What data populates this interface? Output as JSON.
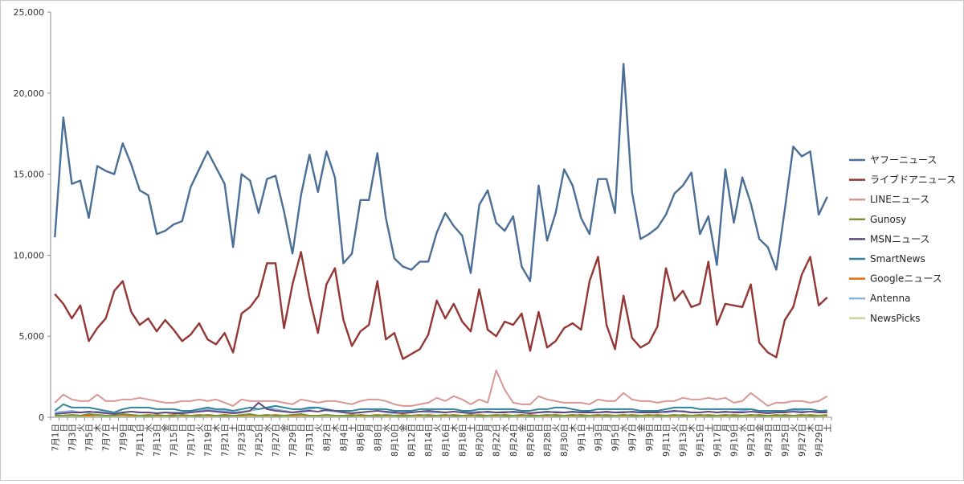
{
  "chart_data": {
    "type": "line",
    "title": "",
    "xlabel": "",
    "ylabel": "",
    "ylim": [
      0,
      25000
    ],
    "yticks": [
      "0",
      "5,000",
      "10,000",
      "15,000",
      "20,000",
      "25,000"
    ],
    "grid": false,
    "legend_position": "right",
    "x_tick_labels": [
      "7月1日",
      "日",
      "7月3日",
      "火",
      "7月5日",
      "木",
      "7月7日",
      "土",
      "7月9日",
      "月",
      "7月11日",
      "水",
      "7月13日",
      "金",
      "7月15日",
      "日",
      "7月17日",
      "火",
      "7月19日",
      "木",
      "7月21日",
      "土",
      "7月23日",
      "月",
      "7月25日",
      "水",
      "7月27日",
      "金",
      "7月29日",
      "日",
      "7月31日",
      "火",
      "8月2日",
      "木",
      "8月4日",
      "土",
      "8月6日",
      "月",
      "8月8日",
      "水",
      "8月10日",
      "金",
      "8月12日",
      "日",
      "8月14日",
      "火",
      "8月16日",
      "木",
      "8月18日",
      "土",
      "8月20日",
      "月",
      "8月22日",
      "水",
      "8月24日",
      "金",
      "8月26日",
      "日",
      "8月28日",
      "火",
      "8月30日",
      "木",
      "9月1日",
      "土",
      "9月3日",
      "月",
      "9月5日",
      "水",
      "9月7日",
      "金",
      "9月9日",
      "日",
      "9月11日",
      "火",
      "9月13日",
      "木",
      "9月15日",
      "土",
      "9月17日",
      "月",
      "9月19日",
      "水",
      "9月21日",
      "金",
      "9月23日",
      "日",
      "9月25日",
      "火",
      "9月27日",
      "木",
      "9月29日",
      "土"
    ],
    "series": [
      {
        "name": "ヤフーニュース",
        "color": "#4a6e96",
        "values": [
          11100,
          18500,
          14400,
          14600,
          12300,
          15500,
          15200,
          15000,
          16900,
          15600,
          14000,
          13700,
          11300,
          11500,
          11900,
          12100,
          14200,
          15300,
          16400,
          15400,
          14400,
          10500,
          15000,
          14600,
          12600,
          14700,
          14900,
          12700,
          10100,
          13700,
          16200,
          13900,
          16400,
          14800,
          9500,
          10100,
          13400,
          13400,
          16300,
          12300,
          9800,
          9300,
          9100,
          9600,
          9600,
          11400,
          12600,
          11800,
          11200,
          8900,
          13100,
          14000,
          12000,
          11500,
          12400,
          9300,
          8400,
          14300,
          10900,
          12600,
          15300,
          14300,
          12300,
          11300,
          14700,
          14700,
          12600,
          21800,
          13900,
          11000,
          11300,
          11700,
          12500,
          13800,
          14300,
          15100,
          11300,
          12400,
          9400,
          15300,
          12000,
          14800,
          13200,
          11000,
          10500,
          9100,
          12800,
          16700,
          16100,
          16400,
          12500,
          13600
        ]
      },
      {
        "name": "ライブドアニュース",
        "color": "#943634",
        "values": [
          7600,
          7000,
          6100,
          6900,
          4700,
          5500,
          6100,
          7800,
          8400,
          6500,
          5700,
          6100,
          5300,
          6000,
          5400,
          4700,
          5100,
          5800,
          4800,
          4500,
          5200,
          4000,
          6400,
          6800,
          7500,
          9500,
          9500,
          5500,
          8200,
          10200,
          7400,
          5200,
          8200,
          9200,
          6000,
          4400,
          5300,
          5700,
          8400,
          4800,
          5200,
          3600,
          3900,
          4200,
          5100,
          7200,
          6100,
          7000,
          5900,
          5300,
          7900,
          5400,
          5000,
          5900,
          5700,
          6400,
          4100,
          6500,
          4300,
          4700,
          5500,
          5800,
          5400,
          8400,
          9900,
          5700,
          4200,
          7500,
          4900,
          4300,
          4600,
          5600,
          9200,
          7200,
          7800,
          6800,
          7000,
          9600,
          5700,
          7000,
          6900,
          6800,
          8200,
          4600,
          4000,
          3700,
          6000,
          6800,
          8800,
          9900,
          6900,
          7400
        ]
      },
      {
        "name": "LINEニュース",
        "color": "#d99795",
        "values": [
          900,
          1400,
          1100,
          1000,
          1000,
          1400,
          1000,
          1000,
          1100,
          1100,
          1200,
          1100,
          1000,
          900,
          900,
          1000,
          1000,
          1100,
          1000,
          1100,
          900,
          700,
          1100,
          1000,
          1000,
          1000,
          1000,
          900,
          800,
          1100,
          1000,
          900,
          1000,
          1000,
          900,
          800,
          1000,
          1100,
          1100,
          1000,
          800,
          700,
          700,
          800,
          900,
          1200,
          1000,
          1300,
          1100,
          800,
          1100,
          900,
          2900,
          1700,
          900,
          800,
          800,
          1300,
          1100,
          1000,
          900,
          900,
          900,
          800,
          1100,
          1000,
          1000,
          1500,
          1100,
          1000,
          1000,
          900,
          1000,
          1000,
          1200,
          1100,
          1100,
          1200,
          1100,
          1200,
          900,
          1000,
          1500,
          1100,
          700,
          900,
          900,
          1000,
          1000,
          900,
          1000,
          1300
        ]
      },
      {
        "name": "Gunosy",
        "color": "#77933c",
        "values": [
          100,
          100,
          150,
          100,
          200,
          150,
          100,
          100,
          200,
          150,
          100,
          100,
          150,
          100,
          100,
          150,
          100,
          100,
          150,
          100,
          100,
          100,
          150,
          200,
          100,
          150,
          100,
          100,
          150,
          200,
          100,
          100,
          150,
          100,
          100,
          100,
          150,
          100,
          100,
          150,
          100,
          100,
          100,
          150,
          100,
          100,
          150,
          100,
          100,
          150,
          100,
          100,
          150,
          100,
          100,
          150,
          100,
          100,
          150,
          100,
          100,
          150,
          100,
          100,
          150,
          100,
          100,
          150,
          100,
          100,
          150,
          100,
          100,
          150,
          100,
          100,
          150,
          100,
          100,
          150,
          100,
          100,
          150,
          100,
          100,
          150,
          100,
          100,
          150,
          100,
          100,
          150
        ]
      },
      {
        "name": "MSNニュース",
        "color": "#5f497a",
        "values": [
          200,
          250,
          300,
          300,
          350,
          300,
          250,
          200,
          300,
          350,
          300,
          300,
          250,
          300,
          250,
          250,
          300,
          350,
          400,
          350,
          300,
          250,
          300,
          400,
          900,
          500,
          400,
          350,
          300,
          350,
          400,
          350,
          450,
          400,
          300,
          250,
          300,
          350,
          400,
          350,
          300,
          250,
          300,
          350,
          400,
          350,
          300,
          350,
          300,
          250,
          300,
          350,
          300,
          300,
          350,
          300,
          250,
          300,
          350,
          300,
          300,
          350,
          300,
          300,
          300,
          350,
          300,
          300,
          350,
          300,
          300,
          300,
          350,
          400,
          350,
          300,
          300,
          350,
          300,
          350,
          300,
          300,
          350,
          300,
          250,
          300,
          300,
          350,
          300,
          350,
          300,
          300
        ]
      },
      {
        "name": "SmartNews",
        "color": "#31849b",
        "values": [
          400,
          800,
          600,
          600,
          600,
          500,
          400,
          300,
          500,
          600,
          600,
          600,
          500,
          500,
          500,
          400,
          400,
          500,
          600,
          500,
          500,
          400,
          500,
          600,
          500,
          600,
          700,
          600,
          500,
          500,
          600,
          600,
          500,
          400,
          400,
          400,
          500,
          500,
          500,
          500,
          400,
          400,
          400,
          500,
          500,
          500,
          500,
          500,
          400,
          400,
          500,
          500,
          500,
          500,
          500,
          400,
          400,
          500,
          500,
          600,
          600,
          500,
          400,
          400,
          500,
          500,
          500,
          500,
          500,
          400,
          400,
          400,
          500,
          600,
          600,
          600,
          500,
          500,
          500,
          500,
          500,
          500,
          500,
          400,
          400,
          400,
          400,
          500,
          500,
          500,
          400,
          400
        ]
      },
      {
        "name": "Googleニュース",
        "color": "#e46c0a",
        "values": [
          100,
          100,
          150,
          100,
          100,
          150,
          100,
          100,
          150,
          100,
          100,
          150,
          100,
          100,
          150,
          100,
          100,
          150,
          100,
          100,
          150,
          100,
          100,
          150,
          100,
          100,
          150,
          100,
          100,
          150,
          100,
          100,
          150,
          100,
          100,
          150,
          100,
          100,
          150,
          100,
          100,
          150,
          100,
          100,
          150,
          100,
          100,
          150,
          100,
          100,
          150,
          100,
          100,
          150,
          100,
          100,
          150,
          100,
          100,
          150,
          100,
          100,
          150,
          100,
          100,
          150,
          100,
          100,
          150,
          100,
          100,
          150,
          100,
          100,
          150,
          100,
          100,
          150,
          100,
          100,
          150,
          100,
          100,
          150,
          100,
          100,
          150,
          100,
          100,
          150,
          100,
          100
        ]
      },
      {
        "name": "Antenna",
        "color": "#8eb4e3",
        "values": [
          300,
          350,
          400,
          300,
          300,
          350,
          300,
          250,
          300,
          350,
          300,
          300,
          250,
          300,
          300,
          300,
          350,
          400,
          500,
          400,
          400,
          300,
          350,
          400,
          500,
          600,
          500,
          400,
          300,
          400,
          500,
          600,
          400,
          350,
          300,
          250,
          300,
          350,
          400,
          300,
          250,
          300,
          300,
          350,
          300,
          300,
          300,
          350,
          300,
          300,
          350,
          300,
          300,
          350,
          300,
          300,
          250,
          300,
          300,
          350,
          300,
          300,
          300,
          350,
          300,
          300,
          300,
          350,
          300,
          300,
          300,
          350,
          300,
          350,
          400,
          300,
          300,
          350,
          300,
          300,
          350,
          400,
          500,
          300,
          300,
          350,
          400,
          450,
          400,
          350,
          350,
          450
        ]
      },
      {
        "name": "NewsPicks",
        "color": "#c4d79b",
        "values": [
          50,
          50,
          80,
          50,
          50,
          80,
          50,
          50,
          80,
          50,
          50,
          80,
          50,
          50,
          80,
          50,
          50,
          80,
          50,
          50,
          80,
          50,
          50,
          80,
          50,
          50,
          80,
          50,
          50,
          80,
          50,
          50,
          80,
          50,
          50,
          80,
          50,
          50,
          80,
          50,
          50,
          80,
          50,
          50,
          80,
          50,
          50,
          80,
          50,
          50,
          80,
          50,
          50,
          80,
          50,
          50,
          80,
          50,
          50,
          80,
          50,
          50,
          80,
          50,
          50,
          80,
          50,
          50,
          80,
          50,
          50,
          80,
          50,
          50,
          80,
          50,
          50,
          80,
          50,
          50,
          80,
          50,
          50,
          80,
          50,
          50,
          80,
          50,
          50,
          80,
          50,
          50
        ]
      }
    ]
  }
}
